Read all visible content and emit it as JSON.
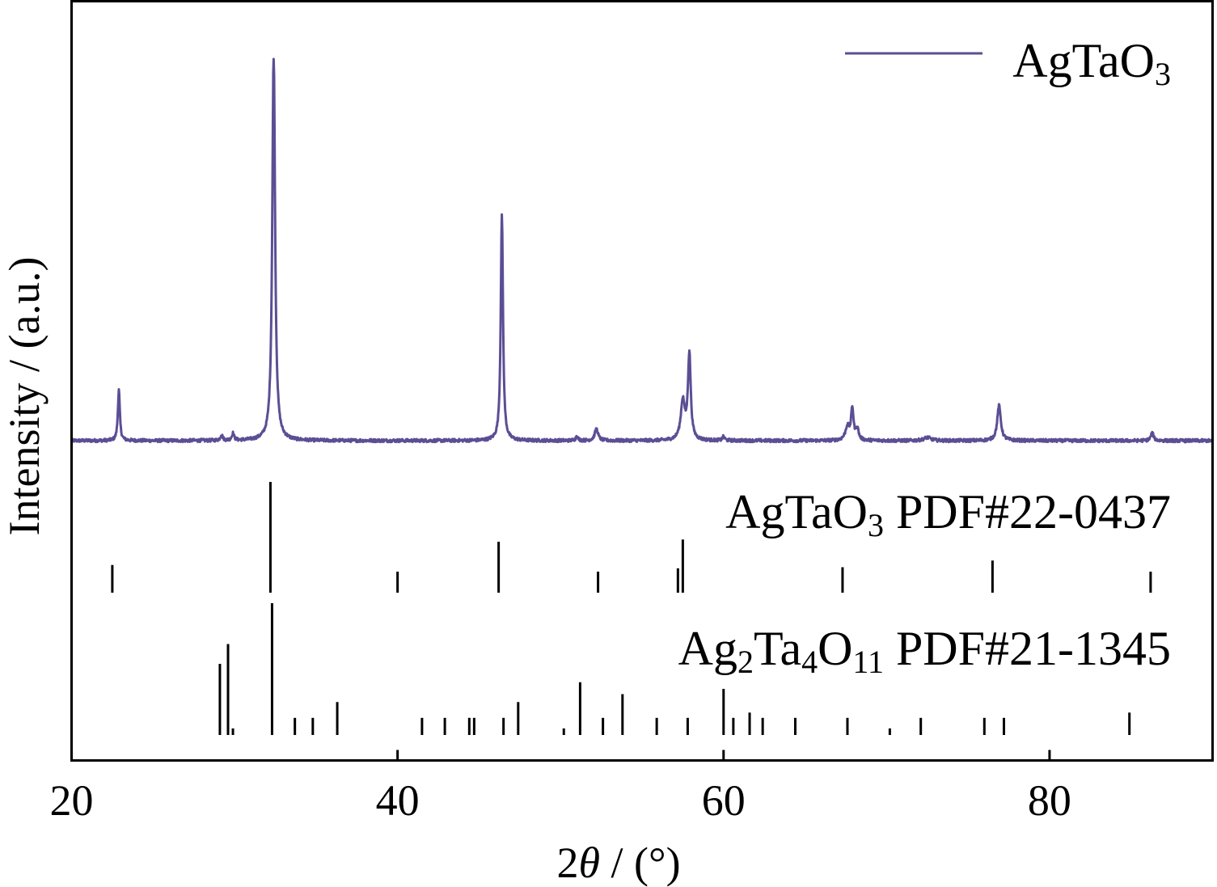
{
  "chart_data": {
    "type": "line",
    "xlabel_prefix": "2",
    "xlabel_theta": "θ",
    "xlabel_suffix": " / (°)",
    "ylabel": "Intensity / (a.u.)",
    "xlim": [
      20,
      90
    ],
    "x_ticks": [
      "20",
      "40",
      "60",
      "80"
    ],
    "x_tick_values": [
      20,
      40,
      60,
      80
    ],
    "legend": {
      "position": "top-right",
      "name": "AgTaO",
      "sub": "3"
    },
    "series": [
      {
        "name": "AgTaO3",
        "color": "#5c4e94",
        "baseline": 0.02,
        "noise": 0.004,
        "peaks": [
          {
            "x": 22.9,
            "h": 0.13,
            "w": 0.07
          },
          {
            "x": 29.2,
            "h": 0.015,
            "w": 0.08
          },
          {
            "x": 29.9,
            "h": 0.018,
            "w": 0.08
          },
          {
            "x": 32.4,
            "h": 1.0,
            "w": 0.1
          },
          {
            "x": 46.4,
            "h": 0.58,
            "w": 0.08
          },
          {
            "x": 51.0,
            "h": 0.012,
            "w": 0.08
          },
          {
            "x": 52.2,
            "h": 0.03,
            "w": 0.12
          },
          {
            "x": 57.5,
            "h": 0.1,
            "w": 0.15
          },
          {
            "x": 57.9,
            "h": 0.22,
            "w": 0.1
          },
          {
            "x": 60.0,
            "h": 0.01,
            "w": 0.08
          },
          {
            "x": 67.6,
            "h": 0.035,
            "w": 0.15
          },
          {
            "x": 67.9,
            "h": 0.08,
            "w": 0.09
          },
          {
            "x": 68.2,
            "h": 0.03,
            "w": 0.1
          },
          {
            "x": 72.5,
            "h": 0.008,
            "w": 0.25
          },
          {
            "x": 76.9,
            "h": 0.09,
            "w": 0.13
          },
          {
            "x": 86.3,
            "h": 0.02,
            "w": 0.1
          }
        ]
      }
    ],
    "references": [
      {
        "name": "AgTaO",
        "sub": "3",
        "suffix": " PDF#22-0437",
        "lines": [
          {
            "x": 22.5,
            "i": 0.25
          },
          {
            "x": 32.2,
            "i": 1.0
          },
          {
            "x": 40.0,
            "i": 0.19
          },
          {
            "x": 46.2,
            "i": 0.46
          },
          {
            "x": 52.3,
            "i": 0.19
          },
          {
            "x": 57.2,
            "i": 0.22
          },
          {
            "x": 57.5,
            "i": 0.48
          },
          {
            "x": 67.3,
            "i": 0.23
          },
          {
            "x": 76.5,
            "i": 0.29
          },
          {
            "x": 86.2,
            "i": 0.19
          }
        ]
      },
      {
        "name": "Ag",
        "sub1": "2",
        "mid1": "Ta",
        "sub2": "4",
        "mid2": "O",
        "sub3": "11",
        "suffix": " PDF#21-1345",
        "lines": [
          {
            "x": 29.1,
            "i": 0.54
          },
          {
            "x": 29.6,
            "i": 0.69
          },
          {
            "x": 29.9,
            "i": 0.05
          },
          {
            "x": 32.3,
            "i": 1.0
          },
          {
            "x": 33.7,
            "i": 0.13
          },
          {
            "x": 34.8,
            "i": 0.13
          },
          {
            "x": 36.3,
            "i": 0.25
          },
          {
            "x": 41.5,
            "i": 0.13
          },
          {
            "x": 42.9,
            "i": 0.13
          },
          {
            "x": 44.4,
            "i": 0.13
          },
          {
            "x": 44.7,
            "i": 0.13
          },
          {
            "x": 46.5,
            "i": 0.13
          },
          {
            "x": 47.4,
            "i": 0.25
          },
          {
            "x": 50.2,
            "i": 0.05
          },
          {
            "x": 51.2,
            "i": 0.4
          },
          {
            "x": 52.6,
            "i": 0.13
          },
          {
            "x": 53.8,
            "i": 0.31
          },
          {
            "x": 55.9,
            "i": 0.13
          },
          {
            "x": 57.8,
            "i": 0.13
          },
          {
            "x": 60.0,
            "i": 0.35
          },
          {
            "x": 60.6,
            "i": 0.13
          },
          {
            "x": 61.6,
            "i": 0.17
          },
          {
            "x": 62.4,
            "i": 0.13
          },
          {
            "x": 64.4,
            "i": 0.13
          },
          {
            "x": 67.6,
            "i": 0.13
          },
          {
            "x": 70.2,
            "i": 0.05
          },
          {
            "x": 72.1,
            "i": 0.13
          },
          {
            "x": 76.0,
            "i": 0.13
          },
          {
            "x": 77.2,
            "i": 0.13
          },
          {
            "x": 84.9,
            "i": 0.17
          }
        ]
      }
    ]
  }
}
